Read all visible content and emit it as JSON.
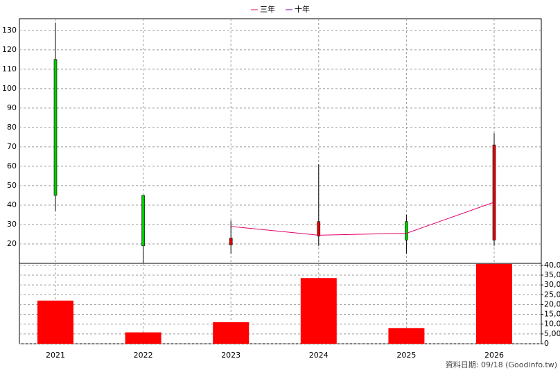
{
  "chart_data": {
    "type": "candlestick",
    "categories": [
      "2021",
      "2022",
      "2023",
      "2024",
      "2025",
      "2026"
    ],
    "open": [
      115,
      45,
      19.5,
      24,
      31.5,
      22
    ],
    "high": [
      134,
      45,
      32,
      61,
      35,
      77
    ],
    "low": [
      37,
      10,
      15,
      19,
      15,
      19
    ],
    "close": [
      45,
      19,
      23,
      31.5,
      22,
      71
    ],
    "up_color": "#e00000",
    "down_color": "#00cc00",
    "ylim": [
      10,
      136
    ],
    "yticks": [
      20,
      30,
      40,
      50,
      60,
      70,
      80,
      90,
      100,
      110,
      120,
      130
    ],
    "series": [
      {
        "name": "三年",
        "color": "#e0006a",
        "values": [
          null,
          null,
          29,
          24.5,
          25.5,
          41.5
        ]
      },
      {
        "name": "十年",
        "color": "#7a00c8",
        "values": [
          null,
          null,
          null,
          null,
          null,
          null
        ]
      }
    ],
    "volume": {
      "color": "#ff0000",
      "values": [
        22000,
        5800,
        11000,
        33500,
        8000,
        40700
      ]
    },
    "y2lim": [
      0,
      41000
    ],
    "y2ticks": [
      {
        "value": 0,
        "label": "0"
      },
      {
        "value": 5000,
        "label": "5,000"
      },
      {
        "value": 10000,
        "label": "10,000"
      },
      {
        "value": 15000,
        "label": "15,000"
      },
      {
        "value": 20000,
        "label": "20,000"
      },
      {
        "value": 25000,
        "label": "25,000"
      },
      {
        "value": 30000,
        "label": "30,000"
      },
      {
        "value": 35000,
        "label": "35,000"
      },
      {
        "value": 40000,
        "label": "40,000"
      }
    ],
    "grid": true,
    "footer": "資料日期: 09/18  (Goodinfo.tw)"
  }
}
